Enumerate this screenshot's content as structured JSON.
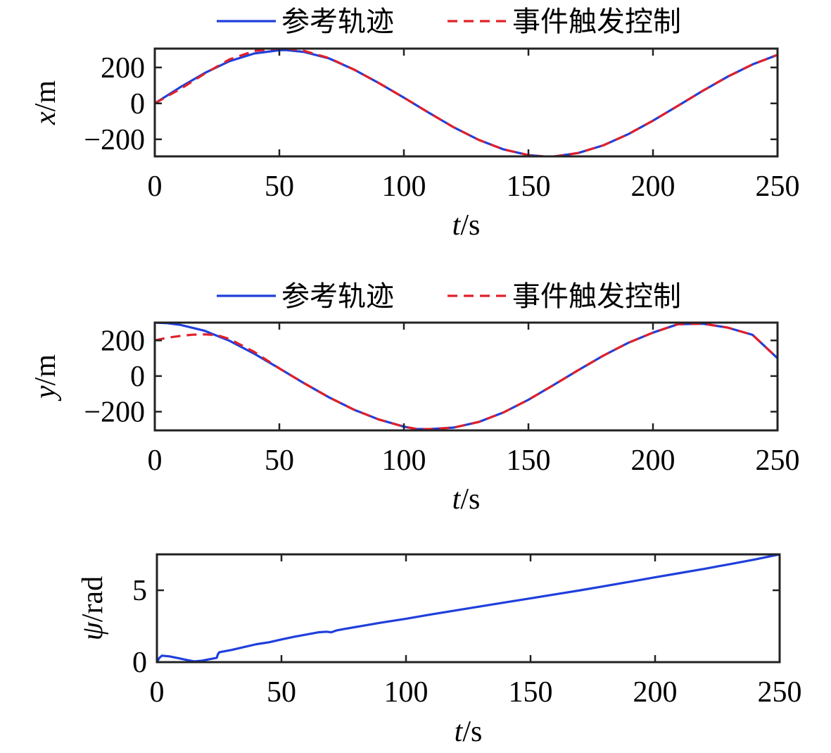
{
  "chart_data": [
    {
      "type": "line",
      "xlabel": {
        "var": "t",
        "unit": "/s"
      },
      "ylabel": {
        "var": "x",
        "unit": "/m"
      },
      "xlim": [
        0,
        250
      ],
      "ylim": [
        -295,
        305
      ],
      "xticks": [
        0,
        50,
        100,
        150,
        200,
        250
      ],
      "xtick_labels": [
        "0",
        "50",
        "100",
        "150",
        "200",
        "250"
      ],
      "yticks": [
        -200,
        0,
        200
      ],
      "ytick_labels": [
        "−200",
        "0",
        "200"
      ],
      "grid": false,
      "legend": {
        "placement": "top-center-outside"
      },
      "series": [
        {
          "name": "参考轨迹",
          "color": "#1f3fdc",
          "style": "solid",
          "x": [
            0,
            10,
            20,
            30,
            40,
            50,
            52.5,
            60,
            70,
            80,
            90,
            100,
            110,
            120,
            130,
            140,
            150,
            157.5,
            160,
            170,
            180,
            190,
            200,
            210,
            220,
            230,
            240,
            250
          ],
          "y": [
            0,
            88,
            169,
            235,
            278,
            296,
            297,
            286,
            250,
            188,
            113,
            32,
            -52,
            -133,
            -203,
            -256,
            -288,
            -297,
            -296,
            -276,
            -234,
            -172,
            -96,
            -14,
            70,
            149,
            217,
            270
          ]
        },
        {
          "name": "事件触发控制",
          "color": "#e0202a",
          "style": "dashed",
          "x": [
            0,
            5,
            10,
            20,
            30,
            40,
            50,
            52.5,
            60,
            70,
            80,
            90,
            100,
            110,
            120,
            130,
            140,
            150,
            157.5,
            160,
            170,
            180,
            190,
            200,
            210,
            220,
            230,
            240,
            250
          ],
          "y": [
            0,
            40,
            78,
            165,
            245,
            292,
            306,
            306,
            292,
            252,
            188,
            113,
            32,
            -52,
            -133,
            -203,
            -256,
            -288,
            -297,
            -296,
            -276,
            -234,
            -172,
            -96,
            -14,
            70,
            149,
            217,
            270
          ]
        }
      ]
    },
    {
      "type": "line",
      "xlabel": {
        "var": "t",
        "unit": "/s"
      },
      "ylabel": {
        "var": "y",
        "unit": "/m"
      },
      "xlim": [
        0,
        250
      ],
      "ylim": [
        -305,
        300
      ],
      "xticks": [
        0,
        50,
        100,
        150,
        200,
        250
      ],
      "xtick_labels": [
        "0",
        "50",
        "100",
        "150",
        "200",
        "250"
      ],
      "yticks": [
        -200,
        0,
        200
      ],
      "ytick_labels": [
        "−200",
        "0",
        "200"
      ],
      "grid": false,
      "legend": {
        "placement": "top-center-outside"
      },
      "series": [
        {
          "name": "参考轨迹",
          "color": "#1f3fdc",
          "style": "solid",
          "x": [
            0,
            5,
            10,
            20,
            30,
            40,
            50,
            60,
            70,
            80,
            90,
            100,
            105,
            110,
            120,
            130,
            140,
            150,
            160,
            170,
            180,
            190,
            200,
            210,
            220,
            230,
            240,
            250
          ],
          "y": [
            300,
            297,
            288,
            254,
            198,
            125,
            43,
            -41,
            -120,
            -189,
            -244,
            -284,
            -297,
            -298,
            -289,
            -258,
            -204,
            -133,
            -51,
            33,
            114,
            186,
            244,
            291,
            294,
            272,
            231,
            100
          ]
        },
        {
          "name": "事件触发控制",
          "color": "#e0202a",
          "style": "dashed",
          "x": [
            0,
            5,
            10,
            15,
            20,
            25,
            30,
            40,
            50,
            60,
            70,
            80,
            90,
            100,
            105,
            110,
            120,
            130,
            140,
            150,
            160,
            170,
            180,
            190,
            200,
            210,
            220,
            230,
            240,
            250
          ],
          "y": [
            200,
            215,
            225,
            232,
            234,
            230,
            208,
            135,
            43,
            -41,
            -120,
            -189,
            -244,
            -284,
            -297,
            -298,
            -289,
            -258,
            -204,
            -133,
            -51,
            33,
            114,
            186,
            244,
            291,
            294,
            272,
            231,
            100
          ]
        }
      ]
    },
    {
      "type": "line",
      "xlabel": {
        "var": "t",
        "unit": "/s"
      },
      "ylabel": {
        "var": "ψ",
        "unit": "/rad"
      },
      "xlim": [
        0,
        250
      ],
      "ylim": [
        0,
        7.5
      ],
      "xticks": [
        0,
        50,
        100,
        150,
        200,
        250
      ],
      "xtick_labels": [
        "0",
        "50",
        "100",
        "150",
        "200",
        "250"
      ],
      "yticks": [
        0,
        5
      ],
      "ytick_labels": [
        "0",
        "5"
      ],
      "grid": false,
      "series": [
        {
          "name": "",
          "color": "#1f3fdc",
          "style": "solid",
          "x": [
            0,
            1,
            2,
            5,
            8,
            12,
            15,
            18,
            21,
            24,
            24.5,
            25,
            26,
            30,
            35,
            40,
            45,
            50,
            55,
            60,
            65,
            68,
            70,
            72,
            75,
            80,
            90,
            100,
            110,
            120,
            130,
            140,
            150,
            160,
            170,
            180,
            190,
            200,
            210,
            220,
            230,
            240,
            250
          ],
          "y": [
            0,
            0.3,
            0.45,
            0.4,
            0.3,
            0.15,
            0.05,
            0.1,
            0.2,
            0.3,
            0.55,
            0.68,
            0.72,
            0.85,
            1.05,
            1.25,
            1.38,
            1.58,
            1.76,
            1.92,
            2.08,
            2.12,
            2.08,
            2.2,
            2.3,
            2.45,
            2.75,
            3.02,
            3.32,
            3.6,
            3.88,
            4.16,
            4.44,
            4.72,
            5.0,
            5.3,
            5.6,
            5.9,
            6.2,
            6.5,
            6.82,
            7.14,
            7.5
          ]
        }
      ]
    }
  ]
}
